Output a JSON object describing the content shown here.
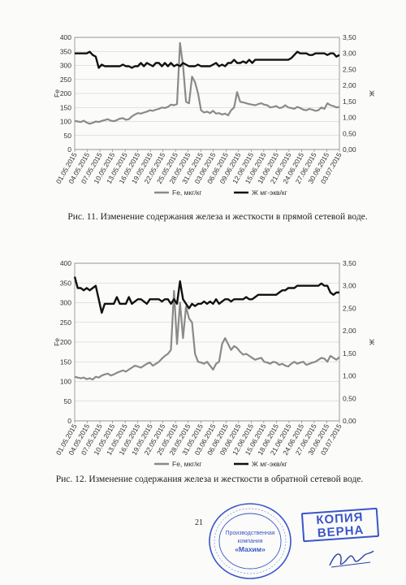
{
  "chart_data": [
    {
      "type": "line",
      "ylabel_left": "Fe",
      "ylabel_right": "Ж",
      "ylim_left": [
        0,
        400
      ],
      "yticks_left": [
        "0",
        "50",
        "100",
        "150",
        "200",
        "250",
        "300",
        "350",
        "400"
      ],
      "ylim_right": [
        0,
        3.5
      ],
      "yticks_right": [
        "0,00",
        "0,50",
        "1,00",
        "1,50",
        "2,00",
        "2,50",
        "3,00",
        "3,50"
      ],
      "grid": true,
      "legend_position": "bottom",
      "x_tick_labels": [
        "01.05.2015",
        "04.05.2015",
        "07.05.2015",
        "10.05.2015",
        "13.05.2015",
        "16.05.2015",
        "19.05.2015",
        "22.05.2015",
        "25.05.2015",
        "28.05.2015",
        "31.05.2015",
        "03.06.2015",
        "06.06.2015",
        "09.06.2015",
        "12.06.2015",
        "15.06.2015",
        "18.06.2015",
        "21.06.2015",
        "24.06.2015",
        "27.06.2015",
        "30.06.2015",
        "03.07.2015"
      ],
      "series": [
        {
          "name": "Fe,  мкг/кг",
          "axis": "left",
          "color": "#8a8a8a",
          "values": [
            102,
            100,
            98,
            103,
            96,
            92,
            95,
            100,
            98,
            102,
            105,
            108,
            103,
            101,
            105,
            110,
            112,
            106,
            108,
            118,
            125,
            130,
            128,
            132,
            135,
            140,
            138,
            142,
            145,
            150,
            148,
            152,
            160,
            158,
            162,
            380,
            300,
            170,
            165,
            260,
            240,
            200,
            140,
            132,
            135,
            130,
            138,
            128,
            130,
            125,
            128,
            122,
            140,
            150,
            205,
            170,
            168,
            165,
            162,
            160,
            158,
            162,
            165,
            160,
            158,
            150,
            152,
            155,
            148,
            150,
            158,
            150,
            148,
            145,
            152,
            148,
            142,
            140,
            145,
            142,
            138,
            140,
            150,
            145,
            165,
            158,
            155,
            150,
            152
          ]
        },
        {
          "name": "Ж   мг-экв/кг",
          "axis": "right",
          "color": "#111111",
          "values": [
            3.0,
            3.0,
            3.0,
            3.0,
            3.0,
            3.05,
            2.95,
            2.9,
            2.55,
            2.65,
            2.6,
            2.6,
            2.6,
            2.6,
            2.6,
            2.6,
            2.65,
            2.6,
            2.6,
            2.55,
            2.6,
            2.6,
            2.7,
            2.6,
            2.7,
            2.65,
            2.6,
            2.7,
            2.7,
            2.6,
            2.7,
            2.6,
            2.7,
            2.6,
            2.65,
            2.6,
            2.7,
            2.65,
            2.6,
            2.6,
            2.6,
            2.65,
            2.6,
            2.6,
            2.6,
            2.6,
            2.65,
            2.7,
            2.6,
            2.65,
            2.6,
            2.7,
            2.7,
            2.8,
            2.7,
            2.7,
            2.75,
            2.7,
            2.8,
            2.7,
            2.8,
            2.8,
            2.8,
            2.8,
            2.8,
            2.8,
            2.8,
            2.8,
            2.8,
            2.8,
            2.8,
            2.8,
            2.85,
            2.95,
            3.05,
            3.0,
            3.0,
            3.0,
            2.95,
            2.95,
            3.0,
            3.0,
            3.0,
            3.0,
            2.95,
            3.0,
            3.0,
            2.9,
            2.95
          ]
        }
      ]
    },
    {
      "type": "line",
      "ylabel_left": "Fe",
      "ylabel_right": "Ж",
      "ylim_left": [
        0,
        400
      ],
      "yticks_left": [
        "0",
        "50",
        "100",
        "150",
        "200",
        "250",
        "300",
        "350",
        "400"
      ],
      "ylim_right": [
        0,
        3.5
      ],
      "yticks_right": [
        "0,00",
        "0,50",
        "1,00",
        "1,50",
        "2,00",
        "2,50",
        "3,00",
        "3,50"
      ],
      "grid": true,
      "legend_position": "bottom",
      "x_tick_labels": [
        "01.05.2015",
        "04.05.2015",
        "07.05.2015",
        "10.05.2015",
        "13.05.2015",
        "16.05.2015",
        "19.05.2015",
        "22.05.2015",
        "25.05.2015",
        "28.05.2015",
        "31.05.2015",
        "03.06.2015",
        "06.06.2015",
        "09.06.2015",
        "12.06.2015",
        "15.06.2015",
        "18.06.2015",
        "21.06.2015",
        "24.06.2015",
        "27.06.2015",
        "30.06.2015",
        "03.07.2015"
      ],
      "series": [
        {
          "name": "Fe,  мкг/кг",
          "axis": "left",
          "color": "#8a8a8a",
          "values": [
            112,
            110,
            108,
            110,
            106,
            108,
            105,
            112,
            110,
            115,
            118,
            120,
            115,
            118,
            122,
            125,
            128,
            125,
            130,
            135,
            140,
            138,
            135,
            140,
            145,
            148,
            140,
            145,
            150,
            158,
            165,
            170,
            180,
            330,
            195,
            300,
            210,
            290,
            260,
            250,
            170,
            150,
            148,
            145,
            150,
            140,
            130,
            145,
            150,
            195,
            210,
            195,
            180,
            190,
            185,
            175,
            168,
            170,
            165,
            160,
            155,
            158,
            160,
            150,
            148,
            145,
            150,
            148,
            142,
            145,
            140,
            138,
            145,
            150,
            145,
            148,
            150,
            142,
            145,
            148,
            150,
            155,
            160,
            158,
            150,
            165,
            160,
            155,
            162
          ]
        },
        {
          "name": "Ж   мг-экв/кг",
          "axis": "right",
          "color": "#111111",
          "values": [
            3.2,
            2.95,
            2.95,
            2.9,
            2.95,
            2.9,
            2.95,
            3.0,
            2.7,
            2.4,
            2.6,
            2.6,
            2.6,
            2.6,
            2.75,
            2.6,
            2.6,
            2.6,
            2.75,
            2.6,
            2.65,
            2.7,
            2.7,
            2.65,
            2.6,
            2.7,
            2.7,
            2.7,
            2.7,
            2.65,
            2.7,
            2.7,
            2.6,
            2.7,
            2.6,
            3.1,
            2.7,
            2.6,
            2.5,
            2.6,
            2.55,
            2.6,
            2.6,
            2.65,
            2.6,
            2.65,
            2.6,
            2.7,
            2.6,
            2.65,
            2.7,
            2.7,
            2.65,
            2.7,
            2.7,
            2.7,
            2.7,
            2.75,
            2.7,
            2.7,
            2.75,
            2.8,
            2.8,
            2.8,
            2.8,
            2.8,
            2.8,
            2.8,
            2.85,
            2.9,
            2.9,
            2.95,
            2.95,
            2.95,
            3.0,
            3.0,
            3.0,
            3.0,
            3.0,
            3.0,
            3.0,
            3.0,
            3.05,
            3.0,
            3.0,
            2.85,
            2.8,
            2.85,
            2.85
          ]
        }
      ]
    }
  ],
  "captions": {
    "fig11": "Рис. 11. Изменение содержания железа и жесткости в прямой сетевой воде.",
    "fig12": "Рис. 12. Изменение содержания железа и жесткости в обратной сетевой воде."
  },
  "page_number": "21",
  "stamp": {
    "line1": "КОПИЯ",
    "line2": "ВЕРНА",
    "color": "#3a55c9"
  },
  "seal": {
    "text": "Производственная компания «Махим»",
    "color": "#3a55c9"
  }
}
